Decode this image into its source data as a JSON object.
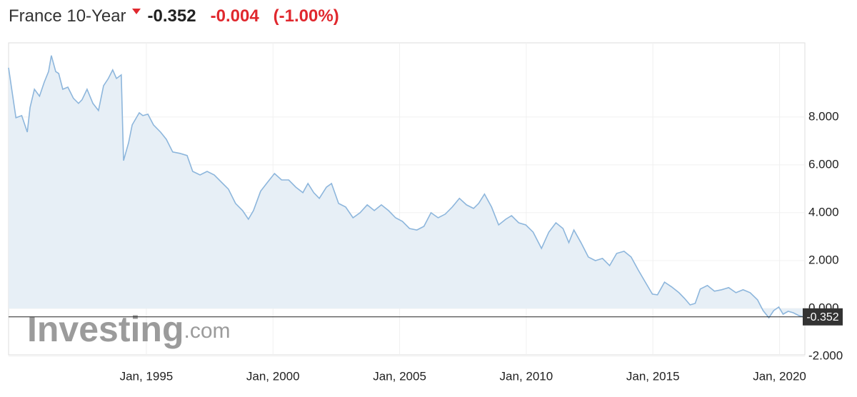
{
  "chart_data": {
    "type": "line",
    "title": "France 10-Year",
    "price": "-0.352",
    "change": "-0.004",
    "change_percent": "(-1.00%)",
    "watermark_brand": "Investing",
    "watermark_suffix": ".com",
    "x": [
      1989.56,
      1989.85,
      1990.08,
      1990.3,
      1990.41,
      1990.58,
      1990.78,
      1990.97,
      1991.14,
      1991.25,
      1991.42,
      1991.54,
      1991.7,
      1991.9,
      1992.12,
      1992.32,
      1992.46,
      1992.66,
      1992.89,
      1993.11,
      1993.31,
      1993.5,
      1993.67,
      1993.82,
      1994.01,
      1994.1,
      1994.3,
      1994.44,
      1994.72,
      1994.86,
      1995.06,
      1995.28,
      1995.56,
      1995.79,
      1996.04,
      1996.33,
      1996.61,
      1996.83,
      1997.12,
      1997.4,
      1997.68,
      1997.96,
      1998.24,
      1998.52,
      1998.8,
      1999.03,
      1999.23,
      1999.51,
      1999.79,
      2000.06,
      2000.34,
      2000.62,
      2000.9,
      2001.18,
      2001.38,
      2001.61,
      2001.83,
      2002.11,
      2002.31,
      2002.59,
      2002.87,
      2003.16,
      2003.44,
      2003.72,
      2004.0,
      2004.28,
      2004.56,
      2004.84,
      2005.11,
      2005.39,
      2005.68,
      2005.96,
      2006.24,
      2006.52,
      2006.8,
      2007.08,
      2007.36,
      2007.64,
      2007.92,
      2008.12,
      2008.35,
      2008.63,
      2008.91,
      2009.19,
      2009.42,
      2009.7,
      2009.98,
      2010.27,
      2010.6,
      2010.89,
      2011.17,
      2011.45,
      2011.68,
      2011.88,
      2012.16,
      2012.45,
      2012.73,
      2013.01,
      2013.29,
      2013.57,
      2013.86,
      2014.14,
      2014.42,
      2014.7,
      2014.98,
      2015.18,
      2015.46,
      2015.74,
      2016.03,
      2016.25,
      2016.47,
      2016.67,
      2016.87,
      2017.15,
      2017.43,
      2017.71,
      2017.99,
      2018.28,
      2018.56,
      2018.84,
      2019.13,
      2019.35,
      2019.58,
      2019.77,
      2019.97,
      2020.14,
      2020.34,
      2020.54,
      2020.76,
      2020.95
    ],
    "values": [
      10.06,
      7.97,
      8.06,
      7.37,
      8.4,
      9.16,
      8.87,
      9.46,
      9.9,
      10.57,
      9.9,
      9.82,
      9.16,
      9.25,
      8.78,
      8.57,
      8.72,
      9.16,
      8.57,
      8.27,
      9.31,
      9.61,
      9.97,
      9.61,
      9.76,
      6.18,
      6.93,
      7.67,
      8.18,
      8.06,
      8.12,
      7.67,
      7.37,
      7.07,
      6.54,
      6.48,
      6.39,
      5.73,
      5.58,
      5.73,
      5.58,
      5.28,
      4.99,
      4.39,
      4.09,
      3.73,
      4.09,
      4.9,
      5.28,
      5.64,
      5.37,
      5.37,
      5.07,
      4.84,
      5.22,
      4.84,
      4.6,
      5.07,
      5.22,
      4.39,
      4.24,
      3.79,
      4.0,
      4.33,
      4.09,
      4.33,
      4.09,
      3.79,
      3.64,
      3.34,
      3.28,
      3.43,
      4.0,
      3.79,
      3.94,
      4.24,
      4.6,
      4.33,
      4.18,
      4.39,
      4.78,
      4.24,
      3.49,
      3.73,
      3.88,
      3.58,
      3.49,
      3.19,
      2.51,
      3.19,
      3.58,
      3.34,
      2.75,
      3.28,
      2.75,
      2.15,
      2.0,
      2.09,
      1.79,
      2.3,
      2.39,
      2.15,
      1.61,
      1.1,
      0.6,
      0.57,
      1.1,
      0.9,
      0.66,
      0.42,
      0.15,
      0.21,
      0.81,
      0.96,
      0.72,
      0.78,
      0.87,
      0.66,
      0.78,
      0.66,
      0.36,
      -0.09,
      -0.39,
      -0.09,
      0.06,
      -0.24,
      -0.12,
      -0.18,
      -0.3,
      -0.352
    ],
    "color": "#8db6dc",
    "fill": "#e7eff6",
    "grid": true,
    "last_value": {
      "value": -0.352,
      "label": "-0.352"
    },
    "xlim": [
      1989.56,
      2021.0
    ],
    "xticks": [
      {
        "value": 1995,
        "label": "Jan, 1995"
      },
      {
        "value": 2000,
        "label": "Jan, 2000"
      },
      {
        "value": 2005,
        "label": "Jan, 2005"
      },
      {
        "value": 2010,
        "label": "Jan, 2010"
      },
      {
        "value": 2015,
        "label": "Jan, 2015"
      },
      {
        "value": 2020,
        "label": "Jan, 2020"
      }
    ],
    "ylim": [
      -2,
      11.1
    ],
    "yticks": [
      {
        "value": 8,
        "label": "8.000"
      },
      {
        "value": 6,
        "label": "6.000"
      },
      {
        "value": 4,
        "label": "4.000"
      },
      {
        "value": 2,
        "label": "2.000"
      },
      {
        "value": 0,
        "label": "0.000"
      },
      {
        "value": -2,
        "label": "-2.000"
      }
    ]
  }
}
